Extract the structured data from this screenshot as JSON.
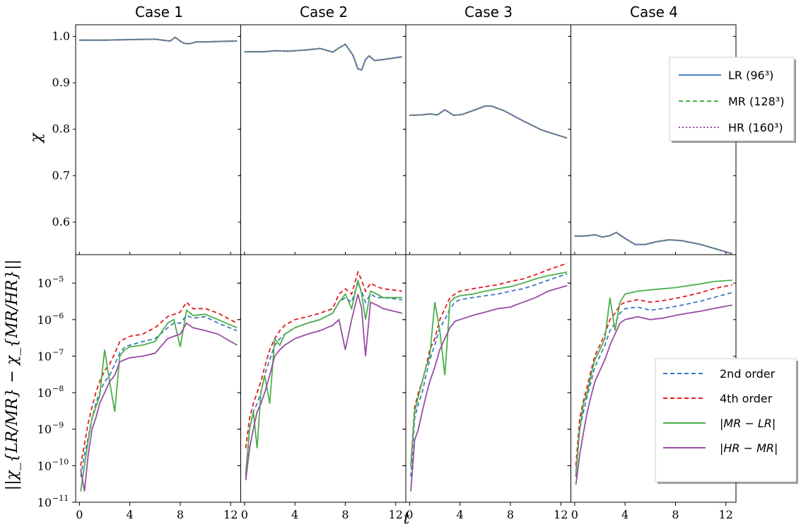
{
  "chart_data": {
    "type": "line",
    "panel_titles": [
      "Case 1",
      "Case 2",
      "Case 3",
      "Case 4"
    ],
    "xlabel": "t",
    "xlim": [
      -0.3,
      12.8
    ],
    "xticks": [
      0,
      4,
      8,
      12
    ],
    "top_row": {
      "ylabel": "χ",
      "ylim": [
        0.53,
        1.025
      ],
      "yticks": [
        0.6,
        0.7,
        0.8,
        0.9,
        1.0
      ],
      "ytick_labels": [
        "0.6",
        "0.7",
        "0.8",
        "0.9",
        "1.0"
      ],
      "legend": {
        "placement": "right of Case 4",
        "entries": [
          {
            "label": "LR (96³)",
            "color": "#4a7ec1",
            "style": "solid"
          },
          {
            "label": "MR (128³)",
            "color": "#4caf50",
            "style": "dashed"
          },
          {
            "label": "HR (160³)",
            "color": "#984ea3",
            "style": "dotted"
          }
        ]
      },
      "cases": [
        {
          "x": [
            0,
            2,
            4,
            6,
            6.6,
            7.2,
            7.6,
            8.0,
            8.3,
            8.7,
            9.3,
            10,
            11,
            12.5
          ],
          "y": [
            0.992,
            0.992,
            0.993,
            0.994,
            0.992,
            0.99,
            0.998,
            0.99,
            0.985,
            0.984,
            0.988,
            0.988,
            0.989,
            0.99
          ]
        },
        {
          "x": [
            0,
            1.5,
            2.5,
            3.5,
            5,
            6,
            7,
            7.5,
            8.0,
            8.6,
            9.0,
            9.3,
            9.6,
            9.9,
            10.3,
            11,
            12.5
          ],
          "y": [
            0.967,
            0.967,
            0.969,
            0.968,
            0.971,
            0.974,
            0.966,
            0.975,
            0.983,
            0.96,
            0.93,
            0.928,
            0.95,
            0.958,
            0.948,
            0.95,
            0.956
          ]
        },
        {
          "x": [
            0,
            1.0,
            1.6,
            2.2,
            2.8,
            3.5,
            4.2,
            5,
            6,
            6.5,
            7.5,
            9,
            10.5,
            12.5
          ],
          "y": [
            0.83,
            0.831,
            0.833,
            0.831,
            0.842,
            0.83,
            0.832,
            0.84,
            0.85,
            0.85,
            0.84,
            0.818,
            0.798,
            0.781
          ]
        },
        {
          "x": [
            0,
            0.8,
            1.6,
            2.2,
            2.8,
            3.3,
            4.0,
            4.8,
            5.6,
            6.5,
            7.5,
            8.5,
            10,
            11.5,
            12.5
          ],
          "y": [
            0.57,
            0.57,
            0.573,
            0.568,
            0.571,
            0.578,
            0.565,
            0.552,
            0.552,
            0.558,
            0.562,
            0.56,
            0.552,
            0.54,
            0.532
          ]
        }
      ]
    },
    "bottom_row": {
      "ylabel": "||χ_{LR/MR} − χ_{MR/HR}||",
      "yscale": "log",
      "ylim": [
        1e-11,
        6e-05
      ],
      "yticks": [
        1e-11,
        1e-10,
        1e-09,
        1e-08,
        1e-07,
        1e-06,
        1e-05
      ],
      "ytick_labels": [
        "10",
        "10",
        "10",
        "10",
        "10",
        "10",
        "10"
      ],
      "ytick_exponents": [
        "−11",
        "−10",
        "−9",
        "−8",
        "−7",
        "−6",
        "−5"
      ],
      "legend": {
        "placement": "lower-right of Case 4",
        "entries": [
          {
            "label": "2nd order",
            "color": "#3b7bbf",
            "style": "dashed"
          },
          {
            "label": "4th order",
            "color": "#e41a1c",
            "style": "dashed"
          },
          {
            "label": "|MR − LR|",
            "color": "#4daf4a",
            "style": "solid"
          },
          {
            "label": "|HR − MR|",
            "color": "#984ea3",
            "style": "solid"
          }
        ]
      },
      "series_keys": [
        "2nd order",
        "4th order",
        "|MR − LR|",
        "|HR − MR|"
      ],
      "cases": [
        {
          "x": [
            0.1,
            0.4,
            0.7,
            1.0,
            1.3,
            1.6,
            2.0,
            2.4,
            2.8,
            3.2,
            3.6,
            4,
            5,
            6,
            7,
            7.5,
            8.0,
            8.5,
            9,
            10,
            11,
            12.5
          ],
          "series": {
            "2nd order": [
              5e-11,
              2e-10,
              6e-10,
              2e-09,
              5e-09,
              1e-08,
              2e-08,
              3e-08,
              6e-08,
              1.2e-07,
              1.8e-07,
              2e-07,
              2.5e-07,
              3e-07,
              6e-07,
              8e-07,
              8e-07,
              1.3e-06,
              1.1e-06,
              1.2e-06,
              8e-07,
              5e-07
            ],
            "4th order": [
              1e-10,
              4e-10,
              1.5e-09,
              4e-09,
              1e-08,
              2e-08,
              4e-08,
              6e-08,
              1.2e-07,
              2.5e-07,
              3e-07,
              3.5e-07,
              4e-07,
              6e-07,
              1.2e-06,
              1.4e-06,
              1.6e-06,
              3e-06,
              2e-06,
              2e-06,
              1.5e-06,
              8e-07
            ],
            "|MR − LR|": [
              2e-11,
              1e-10,
              5e-10,
              2e-09,
              4e-09,
              8e-09,
              1.5e-07,
              2e-08,
              3e-09,
              1e-07,
              1.5e-07,
              1.8e-07,
              2e-07,
              2.5e-07,
              8e-07,
              1e-06,
              1.8e-07,
              1.8e-06,
              1.3e-06,
              1.4e-06,
              1e-06,
              6e-07
            ],
            "|HR − MR|": [
              8e-11,
              2e-11,
              2e-10,
              1e-09,
              2e-09,
              5e-09,
              1e-08,
              2e-08,
              3e-08,
              7e-08,
              8e-08,
              9e-08,
              1e-07,
              1.2e-07,
              3e-07,
              3.5e-07,
              4e-07,
              8e-07,
              6e-07,
              5e-07,
              4e-07,
              2e-07
            ]
          }
        },
        {
          "x": [
            0.1,
            0.4,
            0.7,
            1.0,
            1.3,
            1.6,
            2.0,
            2.4,
            2.8,
            3.2,
            4,
            5,
            6,
            7,
            7.5,
            8.0,
            8.5,
            9.0,
            9.3,
            9.6,
            10.0,
            10.5,
            11,
            12.5
          ],
          "series": {
            "2nd order": [
              5e-11,
              1e-09,
              3e-09,
              5e-09,
              1e-08,
              3e-08,
              8e-08,
              2e-07,
              3e-07,
              4e-07,
              6e-07,
              8e-07,
              1e-06,
              1.5e-06,
              3e-06,
              4e-06,
              3e-06,
              1e-05,
              6e-06,
              3e-06,
              5e-06,
              4e-06,
              4e-06,
              3.5e-06
            ],
            "4th order": [
              3e-10,
              2e-09,
              5e-09,
              1e-08,
              2e-08,
              5e-08,
              1.5e-07,
              3e-07,
              5e-07,
              7e-07,
              1e-06,
              1.2e-06,
              1.5e-06,
              2e-06,
              5e-06,
              7e-06,
              5e-06,
              2e-05,
              1.2e-05,
              6e-06,
              1e-05,
              8e-06,
              7e-06,
              6e-06
            ],
            "|MR − LR|": [
              6e-11,
              1e-09,
              3e-09,
              3e-10,
              1e-08,
              3e-08,
              5e-09,
              3e-07,
              2e-07,
              4e-07,
              6e-07,
              8e-07,
              1e-06,
              1.5e-06,
              3e-06,
              5e-06,
              2e-06,
              1.2e-05,
              5e-06,
              1e-06,
              6e-06,
              5e-06,
              4e-06,
              4e-06
            ],
            "|HR − MR|": [
              4e-11,
              3e-10,
              1e-09,
              3e-09,
              5e-09,
              1e-08,
              3e-08,
              1e-07,
              1.5e-07,
              2e-07,
              3e-07,
              4e-07,
              5e-07,
              7e-07,
              1e-06,
              1.5e-07,
              1e-06,
              5e-06,
              2e-06,
              1e-07,
              3e-06,
              2.5e-06,
              2e-06,
              1.5e-06
            ]
          }
        },
        {
          "x": [
            0.1,
            0.4,
            0.7,
            1.0,
            1.3,
            1.6,
            2.0,
            2.4,
            2.8,
            3.2,
            3.6,
            4,
            5,
            6,
            7,
            8,
            9,
            10,
            11,
            12.5
          ],
          "series": {
            "2nd order": [
              5e-11,
              2e-09,
              5e-09,
              1e-08,
              3e-08,
              8e-08,
              2e-07,
              6e-07,
              1e-06,
              2e-06,
              3e-06,
              3.5e-06,
              4e-06,
              4.5e-06,
              5e-06,
              6e-06,
              7e-06,
              9e-06,
              1.2e-05,
              1.8e-05
            ],
            "4th order": [
              1e-10,
              4e-09,
              1e-08,
              2e-08,
              5e-08,
              1.5e-07,
              3e-07,
              1e-06,
              2e-06,
              4e-06,
              5e-06,
              6e-06,
              7e-06,
              8e-06,
              9e-06,
              1.1e-05,
              1.3e-05,
              1.7e-05,
              2.3e-05,
              3.5e-05
            ],
            "|MR − LR|": [
              1e-10,
              3e-09,
              8e-09,
              2e-08,
              5e-08,
              1e-07,
              3e-06,
              5e-07,
              3e-08,
              3e-06,
              4e-06,
              4.5e-06,
              5e-06,
              6e-06,
              7e-06,
              8e-06,
              1e-05,
              1.3e-05,
              1.6e-05,
              2e-05
            ],
            "|HR − MR|": [
              2e-11,
              5e-10,
              1e-09,
              3e-09,
              8e-09,
              2e-08,
              5e-08,
              1.5e-07,
              3e-07,
              6e-07,
              9e-07,
              1e-06,
              1.3e-06,
              1.6e-06,
              2e-06,
              2.2e-06,
              3e-06,
              4e-06,
              6e-06,
              8.5e-06
            ]
          }
        },
        {
          "x": [
            0.1,
            0.4,
            0.7,
            1.0,
            1.3,
            1.6,
            2.0,
            2.4,
            2.8,
            3.2,
            3.6,
            4,
            5,
            6,
            7,
            8,
            9,
            10,
            11,
            12.5
          ],
          "series": {
            "2nd order": [
              5e-11,
              1e-09,
              3e-09,
              8e-09,
              2e-08,
              5e-08,
              1e-07,
              2e-07,
              5e-07,
              8e-07,
              1.5e-06,
              2e-06,
              2.2e-06,
              1.8e-06,
              2e-06,
              2.3e-06,
              2.7e-06,
              3.2e-06,
              4e-06,
              5.5e-06
            ],
            "4th order": [
              1e-10,
              2e-09,
              6e-09,
              1.5e-08,
              4e-08,
              1e-07,
              2e-07,
              4e-07,
              1e-06,
              1.5e-06,
              2.5e-06,
              3e-06,
              3.5e-06,
              3e-06,
              3.3e-06,
              3.8e-06,
              4.5e-06,
              5.5e-06,
              7e-06,
              9e-06
            ],
            "|MR − LR|": [
              6e-11,
              1e-09,
              5e-09,
              1e-08,
              3e-08,
              8e-08,
              1.5e-07,
              3e-07,
              4e-06,
              5e-07,
              3e-06,
              5e-06,
              6e-06,
              6.5e-06,
              7e-06,
              7.5e-06,
              8.5e-06,
              9.5e-06,
              1.1e-05,
              1.2e-05
            ],
            "|HR − MR|": [
              3e-11,
              2e-10,
              8e-10,
              3e-09,
              8e-09,
              2e-08,
              4e-08,
              8e-08,
              2e-07,
              4e-07,
              8e-07,
              1e-06,
              1.2e-06,
              1e-06,
              1.1e-06,
              1.3e-06,
              1.5e-06,
              1.7e-06,
              2e-06,
              2.5e-06
            ]
          }
        }
      ]
    }
  }
}
